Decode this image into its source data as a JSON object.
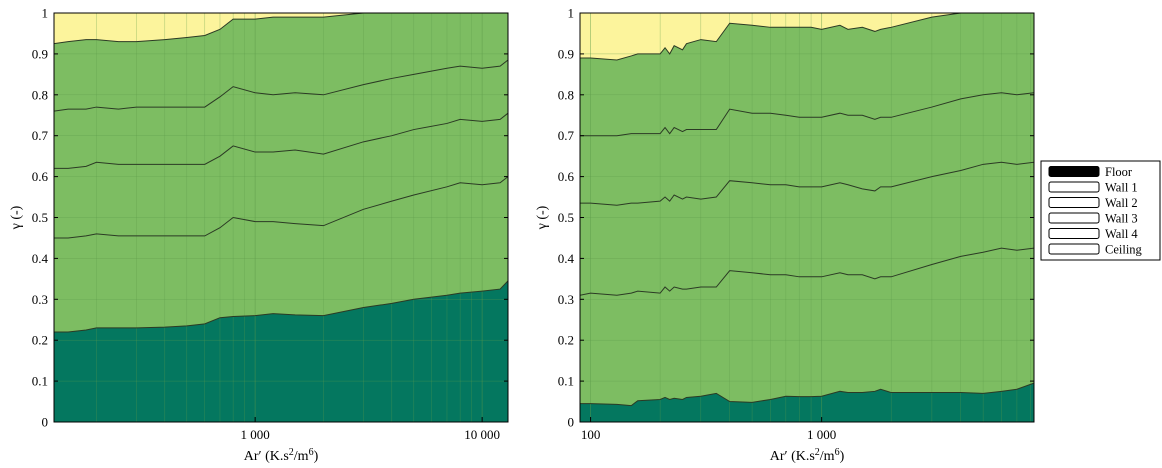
{
  "chart_data": [
    {
      "type": "area",
      "stacked": true,
      "xscale": "log",
      "xlim": [
        130,
        13000
      ],
      "ylim": [
        0,
        1
      ],
      "xticks": [
        1000,
        10000
      ],
      "xtick_labels": [
        "1 000",
        "10 000"
      ],
      "yticks": [
        0,
        0.1,
        0.2,
        0.3,
        0.4,
        0.5,
        0.6,
        0.7,
        0.8,
        0.9,
        1
      ],
      "ytick_labels": [
        "0",
        "0.1",
        "0.2",
        "0.3",
        "0.4",
        "0.5",
        "0.6",
        "0.7",
        "0.8",
        "0.9",
        "1"
      ],
      "xlabel": "Ar′ (K.s2/m6)",
      "xlabel_parts": {
        "prefix": "Ar′ (K.s",
        "sup1": "2",
        "mid": "/m",
        "sup2": "6",
        "suffix": ")"
      },
      "ylabel": "γ (-)",
      "grid": true,
      "x": [
        130,
        150,
        180,
        200,
        250,
        300,
        400,
        500,
        600,
        700,
        800,
        1000,
        1200,
        1500,
        2000,
        3000,
        4000,
        5000,
        7000,
        8000,
        10000,
        12000,
        13000
      ],
      "series": [
        {
          "name": "Floor",
          "cum": [
            0.22,
            0.22,
            0.225,
            0.23,
            0.23,
            0.23,
            0.232,
            0.235,
            0.24,
            0.255,
            0.258,
            0.26,
            0.265,
            0.262,
            0.26,
            0.28,
            0.29,
            0.3,
            0.31,
            0.315,
            0.32,
            0.325,
            0.345
          ]
        },
        {
          "name": "Wall 1",
          "cum": [
            0.45,
            0.45,
            0.455,
            0.46,
            0.455,
            0.455,
            0.455,
            0.455,
            0.455,
            0.475,
            0.5,
            0.49,
            0.49,
            0.485,
            0.48,
            0.52,
            0.54,
            0.555,
            0.575,
            0.585,
            0.58,
            0.585,
            0.6
          ]
        },
        {
          "name": "Wall 2",
          "cum": [
            0.62,
            0.62,
            0.625,
            0.635,
            0.63,
            0.63,
            0.63,
            0.63,
            0.63,
            0.65,
            0.675,
            0.66,
            0.66,
            0.665,
            0.655,
            0.685,
            0.7,
            0.715,
            0.73,
            0.74,
            0.735,
            0.74,
            0.755
          ]
        },
        {
          "name": "Wall 3",
          "cum": [
            0.76,
            0.765,
            0.765,
            0.77,
            0.765,
            0.77,
            0.77,
            0.77,
            0.77,
            0.795,
            0.82,
            0.805,
            0.8,
            0.805,
            0.8,
            0.825,
            0.84,
            0.85,
            0.865,
            0.87,
            0.865,
            0.87,
            0.885
          ]
        },
        {
          "name": "Wall 4",
          "cum": [
            0.925,
            0.93,
            0.935,
            0.935,
            0.93,
            0.93,
            0.935,
            0.94,
            0.945,
            0.96,
            0.985,
            0.985,
            0.99,
            0.99,
            0.99,
            1,
            1,
            1,
            1,
            1,
            1,
            1,
            1
          ]
        },
        {
          "name": "Ceiling",
          "cum": [
            1,
            1,
            1,
            1,
            1,
            1,
            1,
            1,
            1,
            1,
            1,
            1,
            1,
            1,
            1,
            1,
            1,
            1,
            1,
            1,
            1,
            1,
            1
          ]
        }
      ]
    },
    {
      "type": "area",
      "stacked": true,
      "xscale": "log",
      "xlim": [
        90,
        8300
      ],
      "ylim": [
        0,
        1
      ],
      "xticks": [
        100,
        1000
      ],
      "xtick_labels": [
        "100",
        "1 000"
      ],
      "yticks": [
        0,
        0.1,
        0.2,
        0.3,
        0.4,
        0.5,
        0.6,
        0.7,
        0.8,
        0.9,
        1
      ],
      "ytick_labels": [
        "0",
        "0.1",
        "0.2",
        "0.3",
        "0.4",
        "0.5",
        "0.6",
        "0.7",
        "0.8",
        "0.9",
        "1"
      ],
      "xlabel": "Ar′ (K.s2/m6)",
      "xlabel_parts": {
        "prefix": "Ar′ (K.s",
        "sup1": "2",
        "mid": "/m",
        "sup2": "6",
        "suffix": ")"
      },
      "ylabel": "γ (-)",
      "grid": true,
      "x": [
        90,
        100,
        130,
        150,
        160,
        200,
        210,
        220,
        230,
        250,
        260,
        300,
        350,
        400,
        500,
        600,
        700,
        800,
        900,
        1000,
        1200,
        1300,
        1500,
        1700,
        1800,
        2000,
        3000,
        4000,
        5000,
        6000,
        7000,
        8300
      ],
      "series": [
        {
          "name": "Floor",
          "cum": [
            0.045,
            0.045,
            0.043,
            0.04,
            0.052,
            0.055,
            0.06,
            0.055,
            0.058,
            0.055,
            0.06,
            0.063,
            0.07,
            0.05,
            0.048,
            0.055,
            0.063,
            0.062,
            0.062,
            0.063,
            0.075,
            0.072,
            0.072,
            0.075,
            0.08,
            0.072,
            0.072,
            0.072,
            0.07,
            0.075,
            0.08,
            0.095
          ]
        },
        {
          "name": "Wall 1",
          "cum": [
            0.31,
            0.315,
            0.31,
            0.315,
            0.32,
            0.315,
            0.33,
            0.32,
            0.33,
            0.325,
            0.325,
            0.33,
            0.33,
            0.37,
            0.365,
            0.36,
            0.36,
            0.355,
            0.355,
            0.355,
            0.365,
            0.36,
            0.36,
            0.35,
            0.355,
            0.355,
            0.385,
            0.405,
            0.415,
            0.425,
            0.42,
            0.425
          ]
        },
        {
          "name": "Wall 2",
          "cum": [
            0.535,
            0.535,
            0.53,
            0.535,
            0.535,
            0.54,
            0.55,
            0.54,
            0.555,
            0.545,
            0.55,
            0.545,
            0.55,
            0.59,
            0.585,
            0.58,
            0.58,
            0.575,
            0.575,
            0.575,
            0.585,
            0.58,
            0.57,
            0.565,
            0.575,
            0.575,
            0.6,
            0.615,
            0.63,
            0.635,
            0.63,
            0.635
          ]
        },
        {
          "name": "Wall 3",
          "cum": [
            0.7,
            0.7,
            0.7,
            0.705,
            0.705,
            0.705,
            0.72,
            0.705,
            0.72,
            0.71,
            0.715,
            0.715,
            0.715,
            0.765,
            0.755,
            0.755,
            0.75,
            0.745,
            0.745,
            0.745,
            0.755,
            0.75,
            0.75,
            0.74,
            0.745,
            0.745,
            0.77,
            0.79,
            0.8,
            0.805,
            0.8,
            0.805
          ]
        },
        {
          "name": "Wall 4",
          "cum": [
            0.89,
            0.89,
            0.885,
            0.895,
            0.9,
            0.9,
            0.915,
            0.9,
            0.92,
            0.91,
            0.925,
            0.935,
            0.93,
            0.975,
            0.97,
            0.965,
            0.965,
            0.965,
            0.965,
            0.96,
            0.97,
            0.96,
            0.965,
            0.955,
            0.96,
            0.965,
            0.99,
            1,
            1,
            1,
            1,
            1
          ]
        },
        {
          "name": "Ceiling",
          "cum": [
            1,
            1,
            1,
            1,
            1,
            1,
            1,
            1,
            1,
            1,
            1,
            1,
            1,
            1,
            1,
            1,
            1,
            1,
            1,
            1,
            1,
            1,
            1,
            1,
            1,
            1,
            1,
            1,
            1,
            1,
            1,
            1
          ]
        }
      ]
    }
  ],
  "colors": {
    "floor": "#04775f",
    "walls": "#7dbd62",
    "ceiling": "#fcf49c",
    "grid": "#5d9a4a",
    "boundary": "#2b3a24"
  },
  "legend": {
    "position": "right",
    "items": [
      {
        "label": "Floor",
        "swatch": "#000000"
      },
      {
        "label": "Wall 1",
        "swatch": "#ffffff"
      },
      {
        "label": "Wall 2",
        "swatch": "#ffffff"
      },
      {
        "label": "Wall 3",
        "swatch": "#ffffff"
      },
      {
        "label": "Wall 4",
        "swatch": "#ffffff"
      },
      {
        "label": "Ceiling",
        "swatch": "#ffffff"
      }
    ]
  }
}
